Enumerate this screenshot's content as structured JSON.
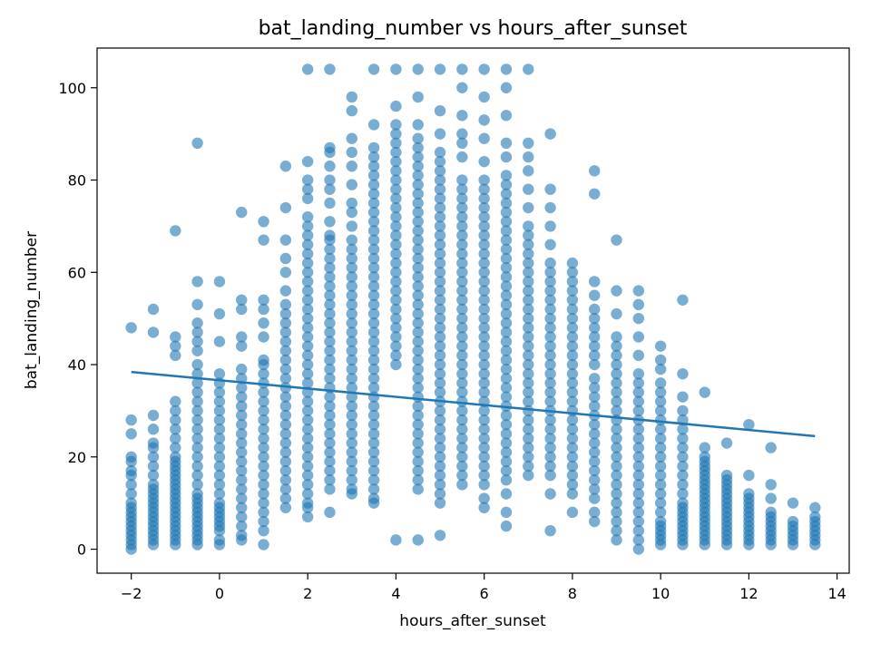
{
  "chart_data": {
    "type": "scatter",
    "title": "bat_landing_number vs hours_after_sunset",
    "xlabel": "hours_after_sunset",
    "ylabel": "bat_landing_number",
    "xlim": [
      -2.775,
      14.275
    ],
    "ylim": [
      -5.2,
      108.6
    ],
    "xticks": [
      -2,
      0,
      2,
      4,
      6,
      8,
      10,
      12,
      14
    ],
    "yticks": [
      0,
      20,
      40,
      60,
      80,
      100
    ],
    "xtick_labels": [
      "−2",
      "0",
      "2",
      "4",
      "6",
      "8",
      "10",
      "12",
      "14"
    ],
    "ytick_labels": [
      "0",
      "20",
      "40",
      "60",
      "80",
      "100"
    ],
    "grid": false,
    "colors": {
      "points": "#1f77b4",
      "line": "#1f77b4"
    },
    "point_opacity": 0.6,
    "trend_line": {
      "x": [
        -2,
        13.5
      ],
      "y": [
        38.4,
        24.5
      ]
    },
    "series": [
      {
        "x_values": [
          -2,
          -1.5,
          -1,
          -0.5,
          0,
          0.5,
          1,
          1.5,
          2,
          2.5,
          3,
          3.5,
          4,
          4.5,
          5,
          5.5,
          6,
          6.5,
          7,
          7.5,
          8,
          8.5,
          9,
          9.5,
          10,
          10.5,
          11,
          11.5,
          12,
          12.5,
          13,
          13.5
        ],
        "columns": [
          [
            0,
            1,
            2,
            3,
            4,
            5,
            6,
            7,
            8,
            9,
            10,
            12,
            14,
            16,
            17,
            19,
            20,
            25,
            28,
            48
          ],
          [
            1,
            2,
            3,
            4,
            5,
            6,
            7,
            8,
            9,
            10,
            11,
            12,
            13,
            14,
            16,
            18,
            20,
            22,
            23,
            26,
            29,
            47,
            52
          ],
          [
            1,
            2,
            3,
            4,
            5,
            6,
            7,
            8,
            9,
            10,
            11,
            12,
            13,
            14,
            15,
            16,
            17,
            18,
            19,
            20,
            22,
            24,
            26,
            28,
            30,
            32,
            42,
            44,
            46,
            69
          ],
          [
            1,
            2,
            3,
            4,
            5,
            6,
            7,
            8,
            9,
            10,
            11,
            12,
            14,
            16,
            18,
            20,
            22,
            24,
            26,
            28,
            30,
            32,
            34,
            36,
            38,
            40,
            43,
            45,
            47,
            49,
            53,
            58,
            88
          ],
          [
            1,
            2,
            4,
            5,
            6,
            7,
            8,
            9,
            10,
            12,
            14,
            16,
            18,
            20,
            22,
            24,
            26,
            28,
            30,
            32,
            34,
            36,
            38,
            45,
            51,
            58
          ],
          [
            2,
            3,
            5,
            7,
            9,
            11,
            13,
            15,
            17,
            19,
            21,
            23,
            25,
            27,
            29,
            31,
            33,
            35,
            37,
            39,
            44,
            46,
            52,
            54,
            73
          ],
          [
            1,
            4,
            6,
            8,
            10,
            12,
            14,
            16,
            18,
            20,
            22,
            24,
            26,
            28,
            30,
            32,
            34,
            36,
            38,
            40,
            41,
            46,
            49,
            52,
            54,
            67,
            71
          ],
          [
            9,
            11,
            13,
            15,
            17,
            19,
            21,
            23,
            25,
            27,
            29,
            31,
            33,
            35,
            37,
            39,
            41,
            43,
            45,
            47,
            49,
            51,
            53,
            56,
            60,
            63,
            67,
            74,
            83
          ],
          [
            7,
            9,
            10,
            12,
            14,
            16,
            18,
            20,
            22,
            24,
            26,
            28,
            30,
            32,
            34,
            36,
            38,
            40,
            42,
            44,
            46,
            48,
            50,
            52,
            54,
            56,
            58,
            60,
            62,
            64,
            66,
            68,
            70,
            72,
            76,
            78,
            80,
            84,
            104
          ],
          [
            8,
            13,
            15,
            17,
            19,
            21,
            23,
            25,
            27,
            29,
            31,
            33,
            35,
            37,
            39,
            41,
            43,
            45,
            47,
            49,
            51,
            53,
            55,
            57,
            59,
            61,
            63,
            65,
            67,
            68,
            71,
            75,
            78,
            80,
            83,
            86,
            87,
            104
          ],
          [
            12,
            13,
            15,
            17,
            19,
            21,
            23,
            25,
            27,
            29,
            31,
            33,
            35,
            37,
            39,
            41,
            43,
            45,
            47,
            49,
            51,
            53,
            55,
            57,
            59,
            61,
            63,
            65,
            67,
            70,
            73,
            75,
            79,
            83,
            86,
            89,
            95,
            98
          ],
          [
            10,
            11,
            13,
            15,
            17,
            19,
            21,
            23,
            25,
            27,
            29,
            31,
            33,
            35,
            37,
            39,
            41,
            43,
            45,
            47,
            49,
            51,
            53,
            55,
            57,
            59,
            61,
            63,
            65,
            67,
            69,
            71,
            73,
            75,
            77,
            79,
            81,
            83,
            85,
            87,
            92,
            104
          ],
          [
            2,
            40,
            42,
            44,
            46,
            48,
            50,
            52,
            54,
            56,
            58,
            60,
            62,
            64,
            66,
            68,
            70,
            72,
            74,
            76,
            78,
            80,
            82,
            84,
            86,
            88,
            90,
            92,
            96,
            104
          ],
          [
            2,
            13,
            15,
            17,
            19,
            21,
            23,
            25,
            27,
            29,
            31,
            33,
            35,
            37,
            39,
            41,
            43,
            45,
            47,
            49,
            51,
            53,
            55,
            57,
            59,
            61,
            63,
            65,
            67,
            69,
            71,
            73,
            75,
            77,
            79,
            81,
            83,
            85,
            87,
            89,
            92,
            98,
            104
          ],
          [
            3,
            10,
            12,
            14,
            16,
            18,
            20,
            22,
            24,
            26,
            28,
            30,
            32,
            34,
            36,
            38,
            40,
            42,
            44,
            46,
            48,
            50,
            52,
            54,
            56,
            58,
            60,
            62,
            64,
            66,
            68,
            70,
            72,
            74,
            76,
            78,
            80,
            82,
            84,
            86,
            90,
            95,
            104
          ],
          [
            14,
            16,
            18,
            20,
            22,
            24,
            26,
            28,
            30,
            32,
            34,
            36,
            38,
            40,
            42,
            44,
            46,
            48,
            50,
            52,
            54,
            56,
            58,
            60,
            62,
            64,
            66,
            68,
            70,
            72,
            74,
            76,
            78,
            80,
            85,
            88,
            90,
            94,
            100,
            104
          ],
          [
            9,
            11,
            14,
            16,
            18,
            20,
            22,
            24,
            26,
            28,
            30,
            32,
            34,
            36,
            38,
            40,
            42,
            44,
            46,
            48,
            50,
            52,
            54,
            56,
            58,
            60,
            62,
            64,
            66,
            68,
            70,
            72,
            74,
            76,
            78,
            80,
            84,
            89,
            93,
            98,
            104
          ],
          [
            5,
            8,
            12,
            15,
            17,
            19,
            21,
            23,
            25,
            27,
            29,
            31,
            33,
            35,
            37,
            39,
            41,
            43,
            45,
            47,
            49,
            51,
            53,
            55,
            57,
            59,
            61,
            63,
            65,
            67,
            69,
            71,
            73,
            75,
            77,
            79,
            81,
            85,
            88,
            94,
            100,
            104
          ],
          [
            16,
            18,
            20,
            22,
            24,
            26,
            28,
            30,
            32,
            34,
            36,
            38,
            40,
            42,
            44,
            46,
            48,
            50,
            52,
            54,
            56,
            58,
            60,
            62,
            64,
            66,
            68,
            70,
            74,
            78,
            82,
            85,
            88,
            104
          ],
          [
            4,
            12,
            16,
            18,
            20,
            22,
            24,
            26,
            28,
            30,
            32,
            34,
            36,
            38,
            40,
            42,
            44,
            46,
            48,
            50,
            52,
            54,
            56,
            58,
            60,
            62,
            66,
            70,
            74,
            78,
            90
          ],
          [
            8,
            12,
            14,
            16,
            18,
            20,
            22,
            24,
            26,
            28,
            30,
            32,
            34,
            36,
            38,
            40,
            42,
            44,
            46,
            48,
            50,
            52,
            54,
            56,
            58,
            60,
            62
          ],
          [
            6,
            8,
            11,
            13,
            15,
            17,
            19,
            21,
            23,
            25,
            27,
            29,
            31,
            33,
            35,
            37,
            40,
            42,
            44,
            46,
            48,
            50,
            52,
            55,
            58,
            77,
            82
          ],
          [
            2,
            4,
            6,
            8,
            10,
            12,
            14,
            16,
            18,
            20,
            22,
            24,
            26,
            28,
            30,
            32,
            34,
            36,
            38,
            40,
            42,
            44,
            46,
            51,
            56,
            67
          ],
          [
            0,
            2,
            4,
            6,
            8,
            10,
            12,
            14,
            16,
            18,
            20,
            22,
            24,
            26,
            28,
            30,
            32,
            34,
            36,
            38,
            42,
            46,
            50,
            53,
            56
          ],
          [
            1,
            2,
            3,
            4,
            5,
            6,
            8,
            10,
            12,
            14,
            16,
            18,
            20,
            22,
            24,
            26,
            28,
            30,
            32,
            34,
            36,
            39,
            41,
            44
          ],
          [
            1,
            2,
            3,
            4,
            5,
            6,
            7,
            8,
            9,
            10,
            12,
            14,
            16,
            18,
            20,
            22,
            24,
            26,
            28,
            30,
            33,
            38,
            54
          ],
          [
            1,
            2,
            3,
            4,
            5,
            6,
            7,
            8,
            9,
            10,
            11,
            12,
            13,
            14,
            15,
            16,
            17,
            18,
            19,
            20,
            22,
            34
          ],
          [
            1,
            2,
            3,
            4,
            5,
            6,
            7,
            8,
            9,
            10,
            11,
            12,
            13,
            14,
            15,
            16,
            23
          ],
          [
            1,
            2,
            3,
            4,
            5,
            6,
            7,
            8,
            9,
            10,
            11,
            12,
            16,
            27
          ],
          [
            1,
            2,
            3,
            4,
            5,
            6,
            7,
            8,
            11,
            14,
            22
          ],
          [
            1,
            2,
            3,
            4,
            5,
            6,
            10
          ],
          [
            1,
            2,
            3,
            4,
            5,
            6,
            7,
            9
          ]
        ]
      }
    ]
  }
}
